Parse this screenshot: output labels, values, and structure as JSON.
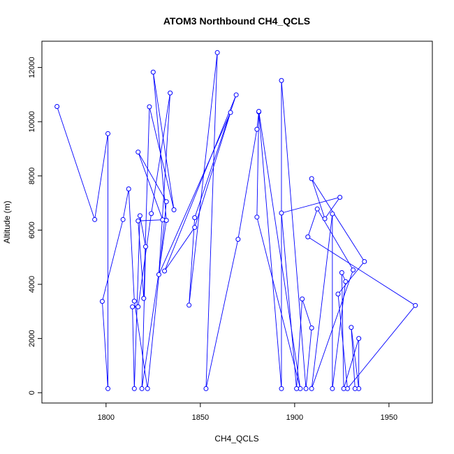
{
  "chart_data": {
    "type": "scatter",
    "title": "ATOM3 Northbound CH4_QCLS",
    "xlabel": "CH4_QCLS",
    "ylabel": "Altitude (m)",
    "xlim": [
      1766,
      1973
    ],
    "ylim": [
      -380,
      12970
    ],
    "xticks": [
      1800,
      1850,
      1900,
      1950
    ],
    "yticks": [
      0,
      2000,
      4000,
      6000,
      8000,
      10000,
      12000
    ],
    "grid": false,
    "legend": "none",
    "series_color": "#0000FF",
    "points": [
      [
        1774,
        10560
      ],
      [
        1794,
        6390
      ],
      [
        1801,
        9560
      ],
      [
        1801,
        150
      ],
      [
        1798,
        3370
      ],
      [
        1809,
        6390
      ],
      [
        1812,
        7520
      ],
      [
        1815,
        3380
      ],
      [
        1822,
        150
      ],
      [
        1832,
        7050
      ],
      [
        1817,
        8880
      ],
      [
        1830,
        6380
      ],
      [
        1817,
        6340
      ],
      [
        1820,
        3480
      ],
      [
        1823,
        10550
      ],
      [
        1836,
        6750
      ],
      [
        1825,
        11830
      ],
      [
        1832,
        6360
      ],
      [
        1819,
        150
      ],
      [
        1821,
        5390
      ],
      [
        1818,
        6530
      ],
      [
        1815,
        150
      ],
      [
        1814,
        3170
      ],
      [
        1817,
        3170
      ],
      [
        1824,
        6610
      ],
      [
        1834,
        11060
      ],
      [
        1828,
        4360
      ],
      [
        1866,
        10340
      ],
      [
        1847,
        6100
      ],
      [
        1831,
        4490
      ],
      [
        1869,
        10990
      ],
      [
        1847,
        6460
      ],
      [
        1844,
        3230
      ],
      [
        1859,
        12550
      ],
      [
        1853,
        150
      ],
      [
        1870,
        5660
      ],
      [
        1880,
        9720
      ],
      [
        1881,
        10360
      ],
      [
        1880,
        6480
      ],
      [
        1903,
        150
      ],
      [
        1881,
        10380
      ],
      [
        1893,
        150
      ],
      [
        1893,
        11520
      ],
      [
        1906,
        150
      ],
      [
        1909,
        2390
      ],
      [
        1904,
        3460
      ],
      [
        1901,
        150
      ],
      [
        1893,
        6630
      ],
      [
        1924,
        7210
      ],
      [
        1916,
        6420
      ],
      [
        1909,
        7900
      ],
      [
        1937,
        4840
      ],
      [
        1923,
        3640
      ],
      [
        1928,
        150
      ],
      [
        1964,
        3220
      ],
      [
        1907,
        5750
      ],
      [
        1912,
        6780
      ],
      [
        1931,
        4530
      ],
      [
        1909,
        150
      ],
      [
        1920,
        6600
      ],
      [
        1920,
        150
      ],
      [
        1927,
        4100
      ],
      [
        1925,
        4430
      ],
      [
        1926,
        150
      ],
      [
        1934,
        2000
      ],
      [
        1934,
        150
      ],
      [
        1930,
        2410
      ],
      [
        1932,
        150
      ]
    ]
  }
}
